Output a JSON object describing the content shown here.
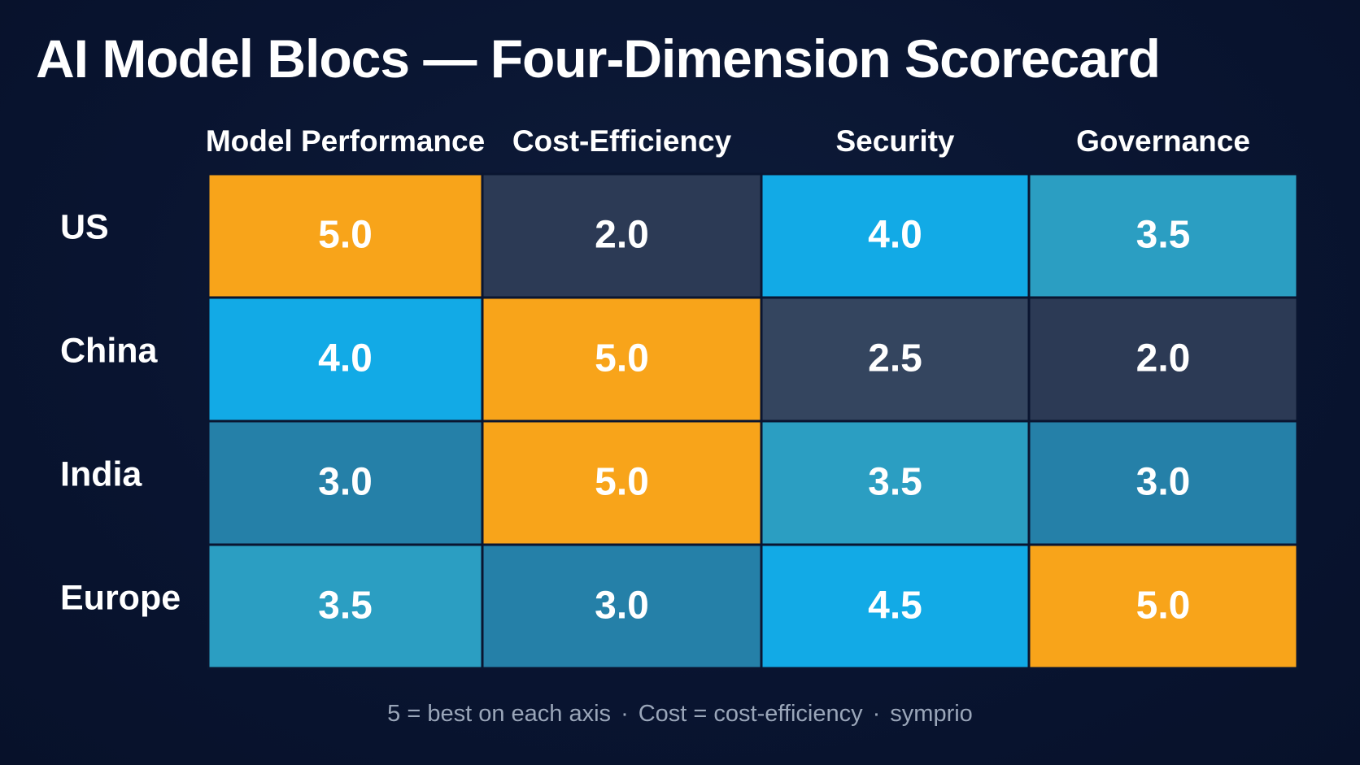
{
  "chart_data": {
    "type": "heatmap",
    "title": "AI Model Blocs — Four-Dimension Scorecard",
    "columns": [
      "Model Performance",
      "Cost-Efficiency",
      "Security",
      "Governance"
    ],
    "rows": [
      "US",
      "China",
      "India",
      "Europe"
    ],
    "values": [
      [
        5.0,
        2.0,
        4.0,
        3.5
      ],
      [
        4.0,
        5.0,
        2.5,
        2.0
      ],
      [
        3.0,
        5.0,
        3.5,
        3.0
      ],
      [
        3.5,
        3.0,
        4.5,
        5.0
      ]
    ],
    "value_labels": [
      [
        "5.0",
        "2.0",
        "4.0",
        "3.5"
      ],
      [
        "4.0",
        "5.0",
        "2.5",
        "2.0"
      ],
      [
        "3.0",
        "5.0",
        "3.5",
        "3.0"
      ],
      [
        "3.5",
        "3.0",
        "4.5",
        "5.0"
      ]
    ],
    "color_scale": {
      "2.0": "#2c3a55",
      "2.5": "#34455f",
      "3.0": "#2580a8",
      "3.5": "#2b9ec2",
      "4.0": "#12aae6",
      "4.5": "#12aae6",
      "5.0": "#f8a41a"
    },
    "grid_line_color": "#0a1530"
  },
  "footnote": {
    "part1": "5 = best on each axis",
    "separator": "·",
    "part2": "Cost = cost-efficiency",
    "part3": "symprio"
  }
}
